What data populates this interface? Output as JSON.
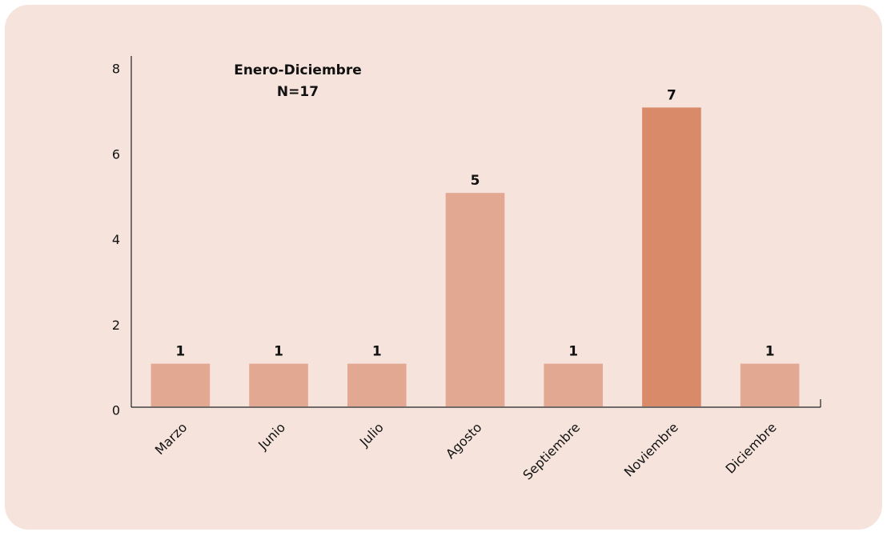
{
  "chart_data": {
    "type": "bar",
    "title": "Enero-Diciembre",
    "subtitle": "N=17",
    "categories": [
      "Marzo",
      "Junio",
      "Julio",
      "Agosto",
      "Septiembre",
      "Noviembre",
      "Diciembre"
    ],
    "values": [
      1,
      1,
      1,
      5,
      1,
      7,
      1
    ],
    "colors": [
      "#e3a891",
      "#e3a891",
      "#e3a891",
      "#e3a891",
      "#e3a891",
      "#d98a69",
      "#e3a891"
    ],
    "ylim": [
      0,
      8
    ],
    "yticks": [
      0,
      2,
      4,
      6,
      8
    ],
    "grid": false
  }
}
